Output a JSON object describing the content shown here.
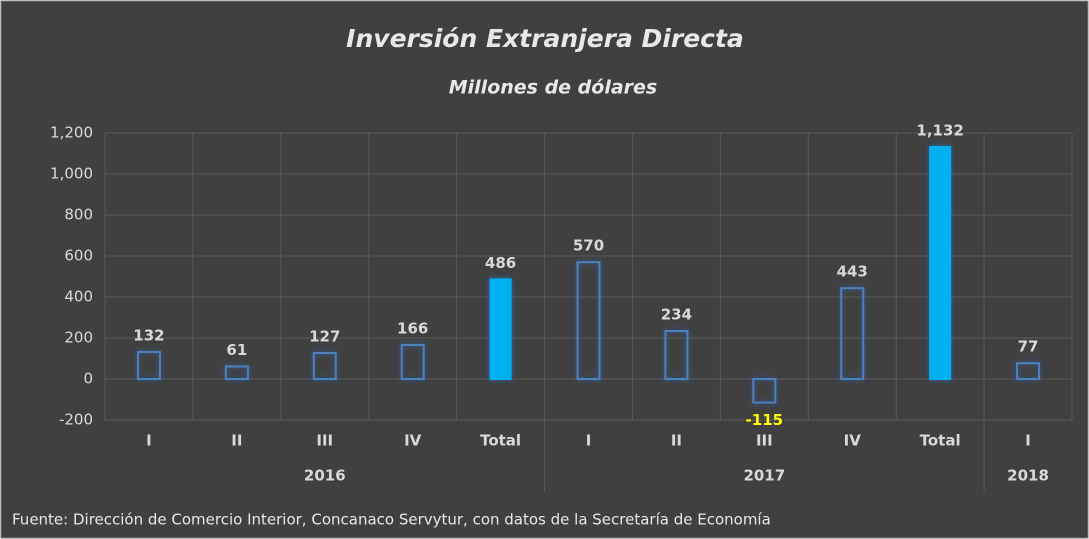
{
  "chart_data": {
    "type": "bar",
    "title": "Inversión Extranjera Directa",
    "subtitle": "Millones de dólares",
    "groups": [
      {
        "name": "2016",
        "categories": [
          "I",
          "II",
          "III",
          "IV",
          "Total"
        ],
        "values": [
          132,
          61,
          127,
          166,
          486
        ],
        "value_labels": [
          "132",
          "61",
          "127",
          "166",
          "486"
        ],
        "filled": [
          false,
          false,
          false,
          false,
          true
        ]
      },
      {
        "name": "2017",
        "categories": [
          "I",
          "II",
          "III",
          "IV",
          "Total"
        ],
        "values": [
          570,
          234,
          -115,
          443,
          1132
        ],
        "value_labels": [
          "570",
          "234",
          "-115",
          "443",
          "1,132"
        ],
        "filled": [
          false,
          false,
          false,
          false,
          true
        ]
      },
      {
        "name": "2018",
        "categories": [
          "I"
        ],
        "values": [
          77
        ],
        "value_labels": [
          "77"
        ],
        "filled": [
          false
        ]
      }
    ],
    "color": "#4f81bd",
    "fill_color": "#00b0f0",
    "label_color": "#d9d9d9",
    "negative_label_color": "#ffff00",
    "ylim": [
      -200,
      1200
    ],
    "yticks": [
      -200,
      0,
      200,
      400,
      600,
      800,
      {
        "value": 1000,
        "label": "1,000"
      },
      {
        "value": 1200,
        "label": "1,200"
      }
    ],
    "grid": true,
    "source": "Fuente: Dirección de Comercio Interior, Concanaco Servytur, con datos de la Secretaría de Economía"
  }
}
